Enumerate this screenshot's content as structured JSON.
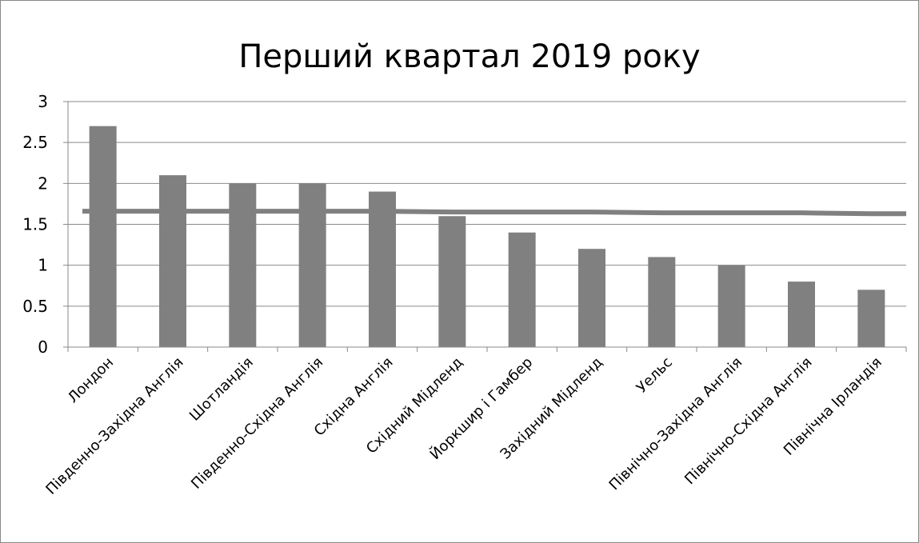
{
  "chart_data": {
    "type": "bar",
    "title": "Перший квартал 2019 року",
    "xlabel": "",
    "ylabel": "",
    "ylim": [
      0,
      3
    ],
    "y_ticks": [
      "0",
      "0.5",
      "1",
      "1.5",
      "2",
      "2.5",
      "3"
    ],
    "grid": true,
    "legend": "none",
    "categories": [
      "Лондон",
      "Південно-Західна Англія",
      "Шотландія",
      "Південно-Східна Англія",
      "Східна Англія",
      "Східний Мідленд",
      "Йоркшир і Гамбер",
      "Західний Мідленд",
      "Уельс",
      "Північно-Західна Англія",
      "Північно-Східна Англія",
      "Північна Ірландія"
    ],
    "series": [
      {
        "type": "bar",
        "values": [
          2.7,
          2.1,
          2.0,
          2.0,
          1.9,
          1.6,
          1.4,
          1.2,
          1.1,
          1.0,
          0.8,
          0.7
        ]
      },
      {
        "type": "line",
        "values": [
          1.66,
          1.66,
          1.66,
          1.66,
          1.66,
          1.65,
          1.65,
          1.65,
          1.64,
          1.64,
          1.64,
          1.63
        ]
      }
    ],
    "colors": {
      "bar": "#808080",
      "line": "#808080",
      "grid": "#898989",
      "axis": "#898989"
    }
  }
}
